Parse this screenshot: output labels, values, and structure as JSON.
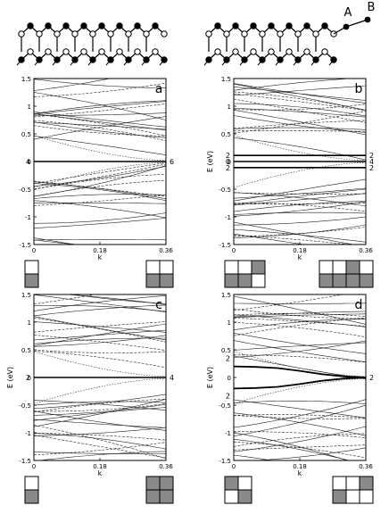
{
  "structure_labels": [
    "A",
    "B"
  ],
  "chart_data": [
    {
      "type": "line",
      "panel": "a",
      "ylabel": "",
      "xlabel": "k",
      "xlim": [
        0,
        0.36
      ],
      "ylim": [
        -1.5,
        1.5
      ],
      "xticks": [
        "0",
        "0.18",
        "0.36"
      ],
      "yticks": [
        "1.5",
        "1",
        "0.5",
        "0",
        "-0.5",
        "-1",
        "-1.5"
      ],
      "flat_bands": [
        {
          "energy": 0,
          "label_left": "4",
          "label_right": "6"
        }
      ],
      "curved_bands": [],
      "tiles": {
        "left": {
          "cols": 1,
          "rows": 2,
          "fill": [
            [
              0
            ],
            [
              1
            ]
          ]
        },
        "right": {
          "cols": 2,
          "rows": 2,
          "fill": [
            [
              0,
              0
            ],
            [
              1,
              1
            ]
          ]
        }
      }
    },
    {
      "type": "line",
      "panel": "b",
      "ylabel": "E (eV)",
      "xlabel": "k",
      "xlim": [
        0,
        0.36
      ],
      "ylim": [
        -1.5,
        1.5
      ],
      "xticks": [
        "0",
        "0.18",
        "0.36"
      ],
      "yticks": [
        "1.5",
        "1",
        "0.5",
        "0",
        "-0.5",
        "-1",
        "-1.5"
      ],
      "flat_bands": [
        {
          "energy": 0.11,
          "label_left": "2",
          "label_right": "2"
        },
        {
          "energy": 0.0,
          "label_left": "0",
          "label_right": "4"
        },
        {
          "energy": -0.11,
          "label_left": "2",
          "label_right": "2"
        }
      ],
      "curved_bands": [],
      "tiles": {
        "left": {
          "cols": 3,
          "rows": 2,
          "fill": [
            [
              0,
              0,
              1
            ],
            [
              1,
              1,
              0
            ]
          ]
        },
        "right": {
          "cols": 4,
          "rows": 2,
          "fill": [
            [
              0,
              0,
              1,
              0
            ],
            [
              1,
              1,
              1,
              1
            ]
          ]
        }
      }
    },
    {
      "type": "line",
      "panel": "c",
      "ylabel": "E (eV)",
      "xlabel": "k",
      "xlim": [
        0,
        0.36
      ],
      "ylim": [
        -1.5,
        1.5
      ],
      "xticks": [
        "0",
        "0.18",
        "0.36"
      ],
      "yticks": [
        "1.5",
        "1",
        "0.5",
        "0",
        "-0.5",
        "-1",
        "-1.5"
      ],
      "flat_bands": [
        {
          "energy": 0,
          "label_left": "2",
          "label_right": "4"
        }
      ],
      "curved_bands": [],
      "tiles": {
        "left": {
          "cols": 1,
          "rows": 2,
          "fill": [
            [
              0
            ],
            [
              1
            ]
          ]
        },
        "right": {
          "cols": 2,
          "rows": 2,
          "fill": [
            [
              1,
              1
            ],
            [
              1,
              1
            ]
          ]
        }
      }
    },
    {
      "type": "line",
      "panel": "d",
      "ylabel": "E (eV)",
      "xlabel": "k",
      "xlim": [
        0,
        0.36
      ],
      "ylim": [
        -1.5,
        1.5
      ],
      "xticks": [
        "0",
        "0.18",
        "0.36"
      ],
      "yticks": [
        "1.5",
        "1",
        "0.5",
        "0",
        "-0.5",
        "-1",
        "-1.5"
      ],
      "flat_bands": [],
      "curved_bands": [
        {
          "x": [
            0,
            0.06,
            0.12,
            0.18,
            0.24,
            0.3,
            0.36
          ],
          "y": [
            0.2,
            0.19,
            0.17,
            0.12,
            0.06,
            0.02,
            0.0
          ]
        },
        {
          "x": [
            0,
            0.06,
            0.12,
            0.18,
            0.24,
            0.3,
            0.36
          ],
          "y": [
            -0.2,
            -0.19,
            -0.17,
            -0.12,
            -0.06,
            -0.02,
            0.0
          ]
        }
      ],
      "band_labels": [
        {
          "text": "2",
          "k": 0.0,
          "energy": 0.35,
          "side": "left"
        },
        {
          "text": "2",
          "k": 0.0,
          "energy": -0.33,
          "side": "left"
        },
        {
          "text": "2",
          "k": 0.36,
          "energy": 0.0,
          "side": "right"
        }
      ],
      "tiles": {
        "left": {
          "cols": 2,
          "rows": 2,
          "fill": [
            [
              1,
              0
            ],
            [
              0,
              1
            ]
          ]
        },
        "right": {
          "cols": 3,
          "rows": 2,
          "fill": [
            [
              0,
              0,
              1
            ],
            [
              1,
              0,
              0
            ]
          ]
        }
      }
    }
  ]
}
